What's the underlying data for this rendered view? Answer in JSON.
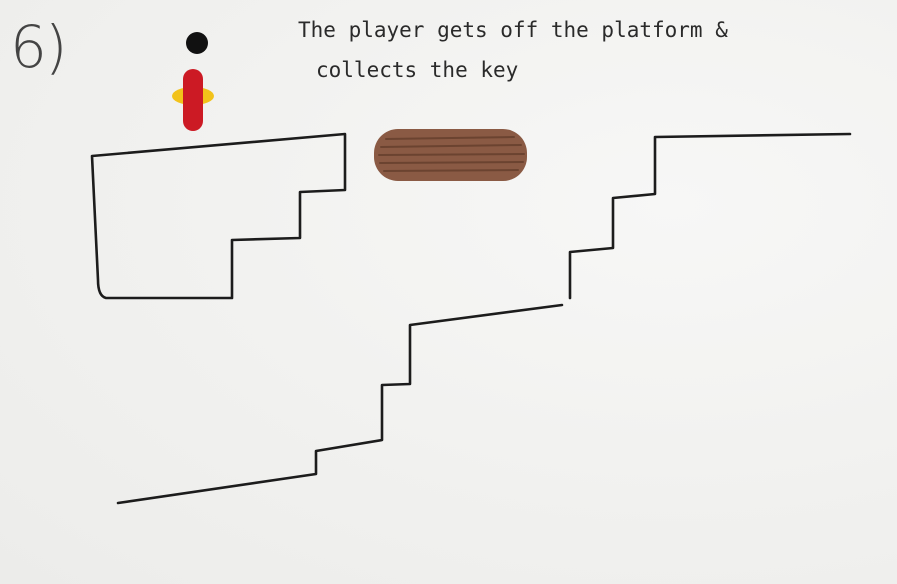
{
  "scene": {
    "step_number": "6)",
    "caption_line1": "The player gets off the platform &",
    "caption_line2": "collects the key"
  },
  "colors": {
    "ink": "#1c1c1c",
    "player_head": "#111111",
    "player_body": "#cc1a24",
    "player_arms": "#f2c21a",
    "platform": "#8a5a44",
    "platform_stripes": "#6b4330"
  },
  "icons": [
    "player-sprite",
    "moving-platform"
  ]
}
